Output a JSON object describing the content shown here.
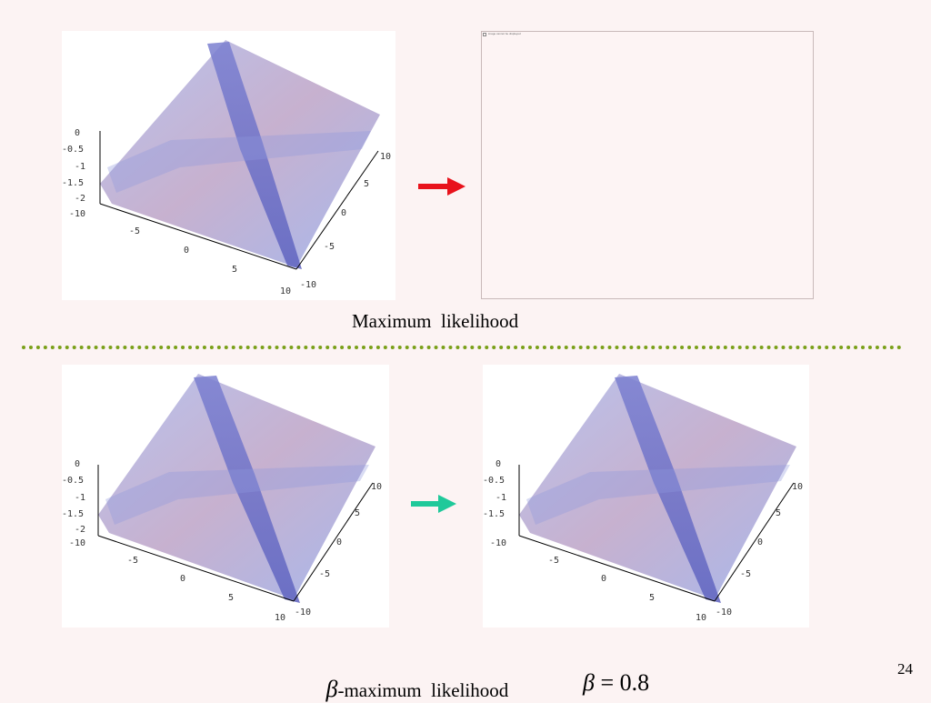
{
  "panels": {
    "z_ticks": [
      "0",
      "-0.5",
      "-1",
      "-1.5",
      "-2",
      "-10"
    ],
    "x_ticks": [
      "-5",
      "0",
      "5",
      "10"
    ],
    "y_ticks": [
      "10",
      "5",
      "0",
      "-5",
      "-10"
    ],
    "z_ticks_right": [
      "0",
      "-0.5",
      "-1",
      "-1.5",
      "-10"
    ]
  },
  "top": {
    "empty_panel_text": "image cannot be displayed",
    "caption": "Maximum  likelihood",
    "arrow_color": "#e8121b"
  },
  "bottom": {
    "caption_prefix": "β",
    "caption": "-maximum  likelihood",
    "equation_var": "β",
    "equation_rest": " = 0.8",
    "arrow_color": "#1fc99a"
  },
  "divider_color": "#7aa019",
  "page_number": "24",
  "surface_colors": {
    "ridge": "#6f6fc8",
    "plane": "#a9b9ea",
    "bump": "#c9a6c2"
  }
}
